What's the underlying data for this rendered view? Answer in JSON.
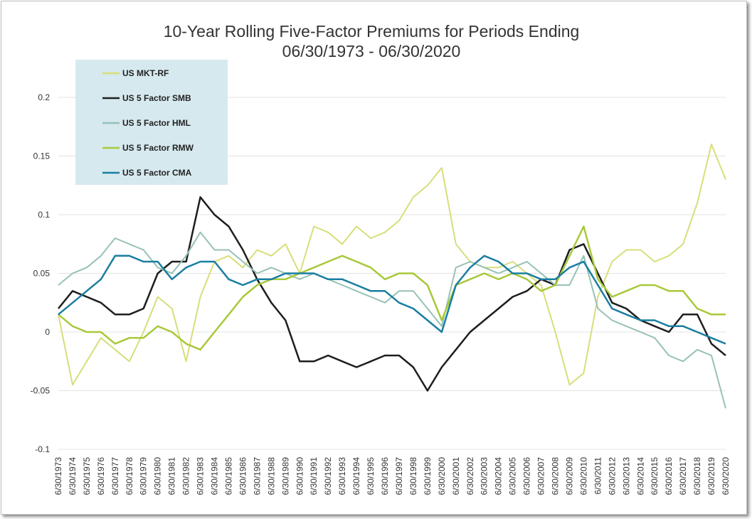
{
  "chart_data": {
    "type": "line",
    "title": "10-Year Rolling Five-Factor Premiums for Periods Ending",
    "subtitle": "06/30/1973 - 06/30/2020",
    "xlabel": "",
    "ylabel": "",
    "ylim": [
      -0.1,
      0.2
    ],
    "yticks": [
      "0.2",
      "0.15",
      "0.1",
      "0.05",
      "0",
      "-0.05",
      "-0.1"
    ],
    "categories": [
      "6/30/1973",
      "6/30/1974",
      "6/30/1975",
      "6/30/1976",
      "6/30/1977",
      "6/30/1978",
      "6/30/1979",
      "6/30/1980",
      "6/30/1981",
      "6/30/1982",
      "6/30/1983",
      "6/30/1984",
      "6/30/1985",
      "6/30/1986",
      "6/30/1987",
      "6/30/1988",
      "6/30/1989",
      "6/30/1990",
      "6/30/1991",
      "6/30/1992",
      "6/30/1993",
      "6/30/1994",
      "6/30/1995",
      "6/30/1996",
      "6/30/1997",
      "6/30/1998",
      "6/30/1999",
      "6/30/2000",
      "6/30/2001",
      "6/30/2002",
      "6/30/2003",
      "6/30/2004",
      "6/30/2005",
      "6/30/2006",
      "6/30/2007",
      "6/30/2008",
      "6/30/2009",
      "6/30/2010",
      "6/30/2011",
      "6/30/2012",
      "6/30/2013",
      "6/30/2014",
      "6/30/2015",
      "6/30/2016",
      "6/30/2017",
      "6/30/2018",
      "6/30/2019",
      "6/30/2020"
    ],
    "grid": "horizontal",
    "legend_position": "top-left",
    "legend_background": "#d6e9ee",
    "series": [
      {
        "name": "US MKT-RF",
        "color": "#d8de7a",
        "width": 2,
        "values": [
          0.015,
          -0.045,
          -0.025,
          -0.005,
          -0.015,
          -0.025,
          0.0,
          0.03,
          0.02,
          -0.025,
          0.03,
          0.06,
          0.065,
          0.055,
          0.07,
          0.065,
          0.075,
          0.05,
          0.09,
          0.085,
          0.075,
          0.09,
          0.08,
          0.085,
          0.095,
          0.115,
          0.125,
          0.14,
          0.075,
          0.06,
          0.055,
          0.055,
          0.06,
          0.05,
          0.04,
          0.0,
          -0.045,
          -0.035,
          0.03,
          0.06,
          0.07,
          0.07,
          0.06,
          0.065,
          0.075,
          0.11,
          0.16,
          0.13
        ]
      },
      {
        "name": "US 5 Factor SMB",
        "color": "#1e1e1e",
        "width": 2.5,
        "values": [
          0.02,
          0.035,
          0.03,
          0.025,
          0.015,
          0.015,
          0.02,
          0.05,
          0.06,
          0.06,
          0.115,
          0.1,
          0.09,
          0.07,
          0.045,
          0.025,
          0.01,
          -0.025,
          -0.025,
          -0.02,
          -0.025,
          -0.03,
          -0.025,
          -0.02,
          -0.02,
          -0.03,
          -0.05,
          -0.03,
          -0.015,
          0.0,
          0.01,
          0.02,
          0.03,
          0.035,
          0.045,
          0.04,
          0.07,
          0.075,
          0.05,
          0.025,
          0.02,
          0.01,
          0.005,
          0.0,
          0.015,
          0.015,
          -0.01,
          -0.02
        ]
      },
      {
        "name": "US 5 Factor HML",
        "color": "#97c1b6",
        "width": 2,
        "values": [
          0.04,
          0.05,
          0.055,
          0.065,
          0.08,
          0.075,
          0.07,
          0.055,
          0.05,
          0.065,
          0.085,
          0.07,
          0.07,
          0.06,
          0.05,
          0.055,
          0.05,
          0.045,
          0.05,
          0.045,
          0.04,
          0.035,
          0.03,
          0.025,
          0.035,
          0.035,
          0.02,
          0.005,
          0.055,
          0.06,
          0.055,
          0.05,
          0.055,
          0.06,
          0.05,
          0.04,
          0.04,
          0.065,
          0.02,
          0.01,
          0.005,
          0.0,
          -0.005,
          -0.02,
          -0.025,
          -0.015,
          -0.02,
          -0.065
        ]
      },
      {
        "name": "US 5 Factor RMW",
        "color": "#a8c93a",
        "width": 2.5,
        "values": [
          0.015,
          0.005,
          0.0,
          0.0,
          -0.01,
          -0.005,
          -0.005,
          0.005,
          0.0,
          -0.01,
          -0.015,
          0.0,
          0.015,
          0.03,
          0.04,
          0.045,
          0.045,
          0.05,
          0.055,
          0.06,
          0.065,
          0.06,
          0.055,
          0.045,
          0.05,
          0.05,
          0.04,
          0.01,
          0.04,
          0.045,
          0.05,
          0.045,
          0.05,
          0.045,
          0.035,
          0.04,
          0.065,
          0.09,
          0.045,
          0.03,
          0.035,
          0.04,
          0.04,
          0.035,
          0.035,
          0.02,
          0.015,
          0.015
        ]
      },
      {
        "name": "US 5 Factor CMA",
        "color": "#1a7ea1",
        "width": 2.5,
        "values": [
          0.015,
          0.025,
          0.035,
          0.045,
          0.065,
          0.065,
          0.06,
          0.06,
          0.045,
          0.055,
          0.06,
          0.06,
          0.045,
          0.04,
          0.045,
          0.045,
          0.05,
          0.05,
          0.05,
          0.045,
          0.045,
          0.04,
          0.035,
          0.035,
          0.025,
          0.02,
          0.01,
          0.0,
          0.04,
          0.055,
          0.065,
          0.06,
          0.05,
          0.05,
          0.045,
          0.045,
          0.055,
          0.06,
          0.04,
          0.02,
          0.015,
          0.01,
          0.01,
          0.005,
          0.005,
          0.0,
          -0.005,
          -0.01
        ]
      }
    ]
  }
}
